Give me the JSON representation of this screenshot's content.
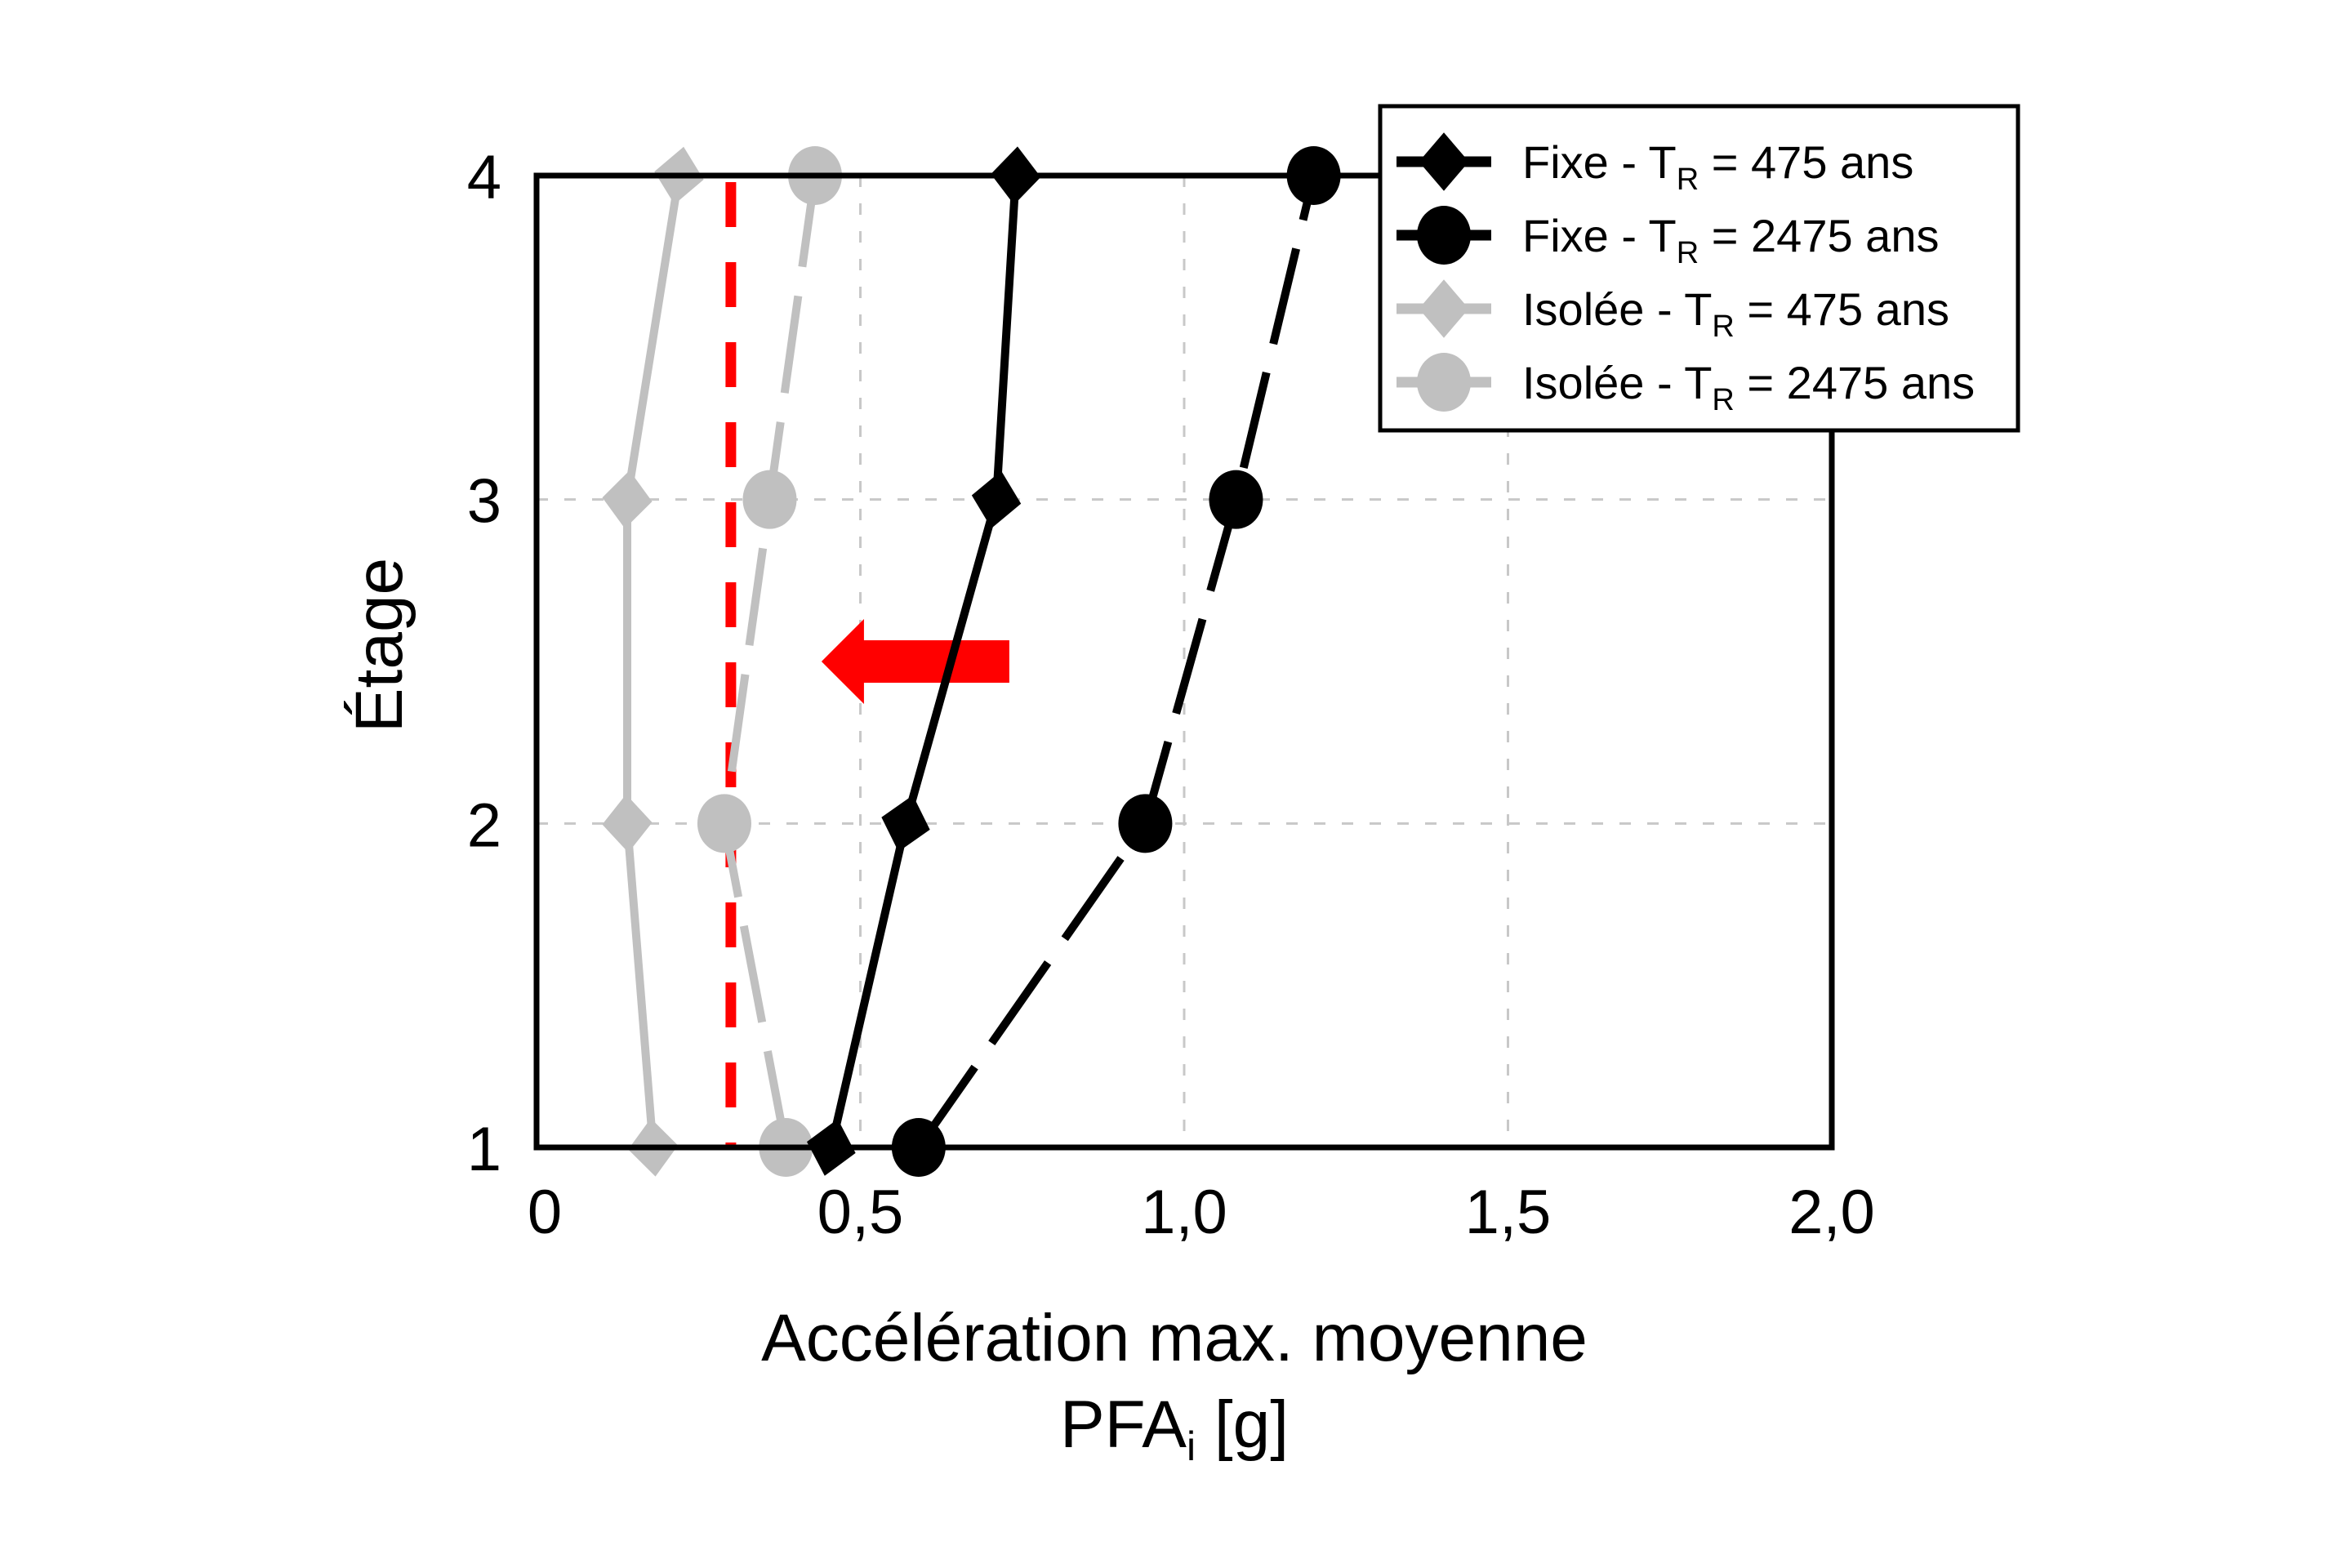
{
  "chart_data": {
    "type": "line",
    "title": "",
    "xlabel": "Accélération max. moyenne",
    "xlabel_line2": "PFA",
    "xlabel_line2_sub": "i",
    "xlabel_line2_unit": " [g]",
    "ylabel": "Étage",
    "xlim": [
      0,
      2.0
    ],
    "ylim": [
      1,
      4
    ],
    "x_ticks": [
      0,
      0.5,
      1.0,
      1.5,
      2.0
    ],
    "x_tick_labels": [
      "0",
      "0,5",
      "1,0",
      "1,5",
      "2,0"
    ],
    "y_ticks": [
      1,
      2,
      3,
      4
    ],
    "y_tick_labels": [
      "1",
      "2",
      "3",
      "4"
    ],
    "grid": true,
    "legend_position": "upper right (outside top-right corner)",
    "series": [
      {
        "name": "Fixe - T_R = 475 ans",
        "label_main": "Fixe - T",
        "label_sub": "R",
        "label_tail": " = 475 ans",
        "color": "#000000",
        "marker": "diamond",
        "linestyle": "solid",
        "x": [
          0.455,
          0.57,
          0.71,
          0.74
        ],
        "y": [
          1,
          2,
          3,
          4
        ]
      },
      {
        "name": "Fixe - T_R = 2475 ans",
        "label_main": "Fixe - T",
        "label_sub": "R",
        "label_tail": " = 2475 ans",
        "color": "#000000",
        "marker": "circle",
        "linestyle": "dashed",
        "x": [
          0.59,
          0.94,
          1.08,
          1.2
        ],
        "y": [
          1,
          2,
          3,
          4
        ]
      },
      {
        "name": "Isolée - T_R = 475 ans",
        "label_main": "Isolée - T",
        "label_sub": "R",
        "label_tail": " = 475 ans",
        "color": "#c0c0c0",
        "marker": "diamond",
        "linestyle": "solid",
        "x": [
          0.18,
          0.14,
          0.14,
          0.22
        ],
        "y": [
          1,
          2,
          3,
          4
        ]
      },
      {
        "name": "Isolée - T_R = 2475 ans",
        "label_main": "Isolée - T",
        "label_sub": "R",
        "label_tail": " = 2475 ans",
        "color": "#c0c0c0",
        "marker": "circle",
        "linestyle": "dashed",
        "x": [
          0.385,
          0.29,
          0.36,
          0.43
        ],
        "y": [
          1,
          2,
          3,
          4
        ]
      }
    ],
    "annotations": [
      {
        "type": "vertical_dashed_line",
        "x": 0.3,
        "color": "#ff0000",
        "y_range": [
          1,
          4
        ]
      },
      {
        "type": "arrow",
        "direction": "left",
        "color": "#ff0000",
        "x_from": 0.73,
        "x_to": 0.44,
        "y": 2.5
      }
    ]
  },
  "colors": {
    "black": "#000000",
    "gray": "#c0c0c0",
    "grid": "#c8c8c8",
    "red": "#ff0000",
    "background": "#ffffff"
  }
}
